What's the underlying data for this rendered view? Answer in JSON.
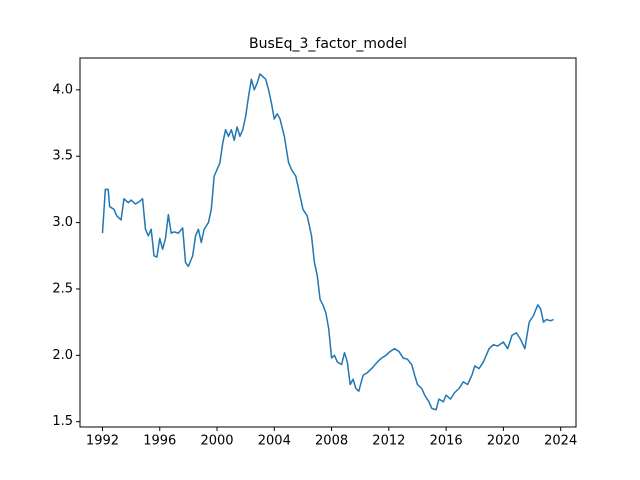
{
  "chart_data": {
    "type": "line",
    "title": "BusEq_3_factor_model",
    "color": "#1f77b4",
    "x": [
      1992.0,
      1992.2,
      1992.4,
      1992.5,
      1992.8,
      1993.0,
      1993.3,
      1993.5,
      1993.8,
      1994.0,
      1994.3,
      1994.6,
      1994.8,
      1995.0,
      1995.2,
      1995.4,
      1995.6,
      1995.8,
      1996.0,
      1996.2,
      1996.4,
      1996.6,
      1996.8,
      1997.0,
      1997.3,
      1997.6,
      1997.8,
      1998.0,
      1998.3,
      1998.5,
      1998.7,
      1998.9,
      1999.1,
      1999.4,
      1999.6,
      1999.8,
      2000.0,
      2000.2,
      2000.4,
      2000.6,
      2000.8,
      2001.0,
      2001.2,
      2001.4,
      2001.6,
      2001.8,
      2002.0,
      2002.2,
      2002.4,
      2002.6,
      2002.8,
      2003.0,
      2003.2,
      2003.4,
      2003.6,
      2003.8,
      2004.0,
      2004.2,
      2004.4,
      2004.7,
      2005.0,
      2005.2,
      2005.5,
      2005.8,
      2006.0,
      2006.3,
      2006.6,
      2006.8,
      2007.0,
      2007.2,
      2007.4,
      2007.6,
      2007.8,
      2008.0,
      2008.2,
      2008.4,
      2008.7,
      2008.9,
      2009.1,
      2009.3,
      2009.5,
      2009.7,
      2009.9,
      2010.2,
      2010.5,
      2010.8,
      2011.2,
      2011.5,
      2011.8,
      2012.1,
      2012.4,
      2012.7,
      2013.0,
      2013.3,
      2013.6,
      2013.8,
      2014.0,
      2014.3,
      2014.5,
      2014.8,
      2015.0,
      2015.3,
      2015.5,
      2015.8,
      2016.0,
      2016.3,
      2016.6,
      2016.9,
      2017.2,
      2017.5,
      2017.8,
      2018.0,
      2018.3,
      2018.6,
      2019.0,
      2019.3,
      2019.6,
      2020.0,
      2020.3,
      2020.6,
      2020.9,
      2021.2,
      2021.5,
      2021.8,
      2022.1,
      2022.4,
      2022.6,
      2022.8,
      2023.0,
      2023.3,
      2023.5
    ],
    "values": [
      2.92,
      3.25,
      3.25,
      3.12,
      3.1,
      3.05,
      3.02,
      3.18,
      3.15,
      3.17,
      3.14,
      3.16,
      3.18,
      2.95,
      2.9,
      2.95,
      2.75,
      2.74,
      2.88,
      2.8,
      2.88,
      3.06,
      2.92,
      2.93,
      2.92,
      2.96,
      2.7,
      2.67,
      2.75,
      2.9,
      2.95,
      2.85,
      2.95,
      3.0,
      3.1,
      3.35,
      3.4,
      3.45,
      3.6,
      3.7,
      3.65,
      3.7,
      3.62,
      3.72,
      3.65,
      3.7,
      3.8,
      3.95,
      4.08,
      4.0,
      4.05,
      4.12,
      4.1,
      4.08,
      4.0,
      3.9,
      3.78,
      3.82,
      3.78,
      3.65,
      3.45,
      3.4,
      3.35,
      3.2,
      3.1,
      3.05,
      2.9,
      2.7,
      2.6,
      2.42,
      2.38,
      2.32,
      2.2,
      1.98,
      2.0,
      1.95,
      1.93,
      2.02,
      1.95,
      1.78,
      1.82,
      1.75,
      1.73,
      1.85,
      1.87,
      1.9,
      1.95,
      1.98,
      2.0,
      2.03,
      2.05,
      2.03,
      1.98,
      1.97,
      1.93,
      1.85,
      1.78,
      1.75,
      1.7,
      1.65,
      1.6,
      1.59,
      1.67,
      1.65,
      1.7,
      1.67,
      1.72,
      1.75,
      1.8,
      1.78,
      1.85,
      1.92,
      1.9,
      1.95,
      2.05,
      2.08,
      2.07,
      2.1,
      2.05,
      2.15,
      2.17,
      2.12,
      2.05,
      2.25,
      2.3,
      2.38,
      2.35,
      2.25,
      2.27,
      2.26,
      2.27
    ],
    "xlim": [
      1990.43,
      2025.07
    ],
    "xticks": [
      1992,
      1996,
      2000,
      2004,
      2008,
      2012,
      2016,
      2020,
      2024
    ],
    "ylim": [
      1.46,
      4.24
    ],
    "yticks": [
      1.5,
      {
        "value": 2,
        "label": "2.0"
      },
      2.5,
      {
        "value": 3,
        "label": "3.0"
      },
      3.5,
      {
        "value": 4,
        "label": "4.0"
      }
    ]
  }
}
